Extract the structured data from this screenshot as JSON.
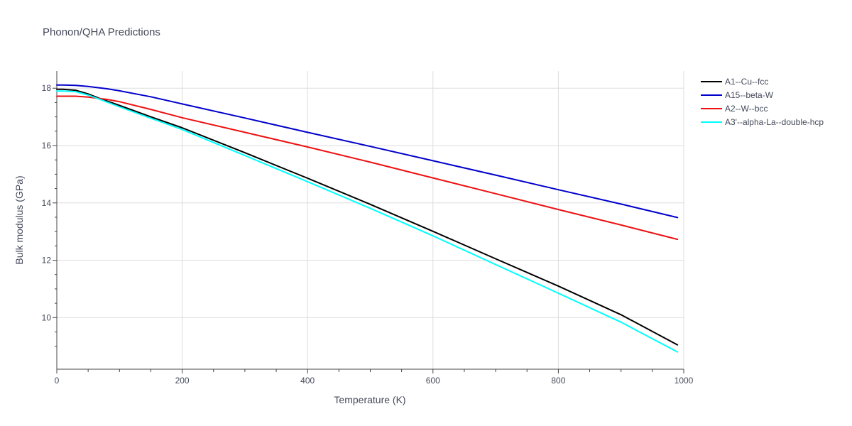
{
  "chart_data": {
    "type": "line",
    "title": "Phonon/QHA Predictions",
    "xlabel": "Temperature (K)",
    "ylabel": "Bulk modulus (GPa)",
    "xlim": [
      0,
      1000
    ],
    "ylim": [
      8.2,
      18.6
    ],
    "xticks": [
      0,
      200,
      400,
      600,
      800,
      1000
    ],
    "yticks": [
      10,
      12,
      14,
      16,
      18
    ],
    "grid": true,
    "legend_position": "top-right",
    "series": [
      {
        "name": "A1--Cu--fcc",
        "color": "#000000",
        "x": [
          0,
          10,
          30,
          50,
          70,
          100,
          150,
          200,
          300,
          400,
          500,
          600,
          700,
          800,
          900,
          990
        ],
        "y": [
          17.96,
          17.96,
          17.93,
          17.8,
          17.63,
          17.4,
          17.0,
          16.62,
          15.75,
          14.86,
          13.95,
          13.01,
          12.05,
          11.1,
          10.1,
          9.05
        ]
      },
      {
        "name": "A15--beta-W",
        "color": "#0000cc",
        "x": [
          0,
          10,
          30,
          50,
          80,
          100,
          150,
          200,
          300,
          400,
          500,
          600,
          700,
          800,
          900,
          990
        ],
        "y": [
          18.11,
          18.11,
          18.1,
          18.06,
          17.98,
          17.91,
          17.7,
          17.45,
          16.96,
          16.46,
          15.97,
          15.47,
          14.97,
          14.46,
          13.96,
          13.49
        ]
      },
      {
        "name": "A2--W--bcc",
        "color": "#ee1111",
        "x": [
          0,
          10,
          30,
          50,
          80,
          100,
          150,
          200,
          300,
          400,
          500,
          600,
          700,
          800,
          900,
          990
        ],
        "y": [
          17.72,
          17.72,
          17.72,
          17.69,
          17.61,
          17.53,
          17.26,
          16.97,
          16.46,
          15.95,
          15.42,
          14.87,
          14.32,
          13.77,
          13.23,
          12.73
        ]
      },
      {
        "name": "A3'--alpha-La--double-hcp",
        "color": "#00ffff",
        "x": [
          0,
          10,
          30,
          50,
          70,
          100,
          150,
          200,
          300,
          400,
          500,
          600,
          700,
          800,
          900,
          990
        ],
        "y": [
          17.9,
          17.9,
          17.88,
          17.76,
          17.6,
          17.35,
          16.95,
          16.56,
          15.65,
          14.74,
          13.81,
          12.85,
          11.85,
          10.85,
          9.84,
          8.8
        ]
      }
    ]
  }
}
